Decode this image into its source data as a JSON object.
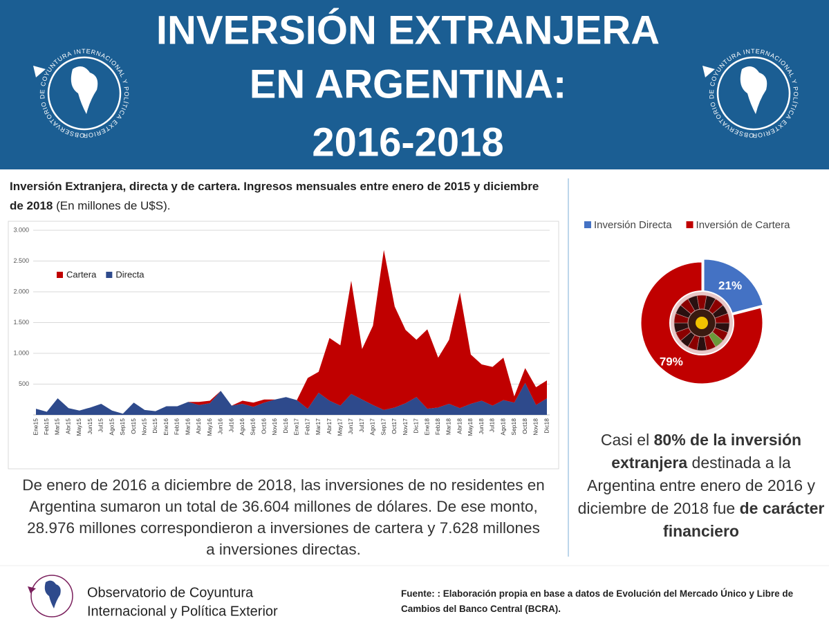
{
  "header": {
    "title_lines": [
      "INVERSIÓN EXTRANJERA",
      "EN ARGENTINA:",
      "2016-2018"
    ],
    "logo_ring": "OBSERVATORIO DE COYUNTURA INTERNACIONAL Y POLÍTICA EXTERIOR"
  },
  "chart_data": [
    {
      "type": "area",
      "title": "Inversión Extranjera, directa y de cartera. Ingresos mensuales entre enero de 2015 y diciembre de 2018",
      "subtitle": "(En millones de U$S).",
      "stacked": true,
      "categories": [
        "Ene15",
        "Feb15",
        "Mar15",
        "Abr15",
        "May15",
        "Jun15",
        "Jul15",
        "Ago15",
        "Sep15",
        "Oct15",
        "Nov15",
        "Dic15",
        "Ene16",
        "Feb16",
        "Mar16",
        "Abr16",
        "May16",
        "Jun16",
        "Jul16",
        "Ago16",
        "Sep16",
        "Oct16",
        "Nov16",
        "Dic16",
        "Ene17",
        "Feb17",
        "Mar17",
        "Abr17",
        "May17",
        "Jun17",
        "Jul17",
        "Ago17",
        "Sep17",
        "Oct17",
        "Nov17",
        "Dic17",
        "Ene18",
        "Feb18",
        "Mar18",
        "Abr18",
        "May18",
        "Jun18",
        "Jul18",
        "Ago18",
        "Sep18",
        "Oct18",
        "Nov18",
        "Dic18"
      ],
      "series": [
        {
          "name": "Cartera",
          "color": "#c00000",
          "values": [
            0,
            0,
            0,
            0,
            0,
            0,
            0,
            0,
            0,
            0,
            0,
            0,
            0,
            0,
            0,
            50,
            40,
            0,
            0,
            50,
            70,
            50,
            0,
            0,
            0,
            500,
            340,
            1020,
            980,
            1840,
            820,
            1290,
            2600,
            1640,
            1190,
            930,
            1290,
            810,
            1040,
            1880,
            800,
            590,
            630,
            690,
            100,
            240,
            290,
            290
          ]
        },
        {
          "name": "Directa",
          "color": "#2e4a8c",
          "values": [
            100,
            50,
            270,
            110,
            70,
            120,
            180,
            70,
            20,
            200,
            80,
            60,
            140,
            140,
            210,
            160,
            190,
            390,
            150,
            180,
            130,
            200,
            250,
            290,
            240,
            100,
            360,
            230,
            150,
            340,
            250,
            160,
            80,
            120,
            190,
            290,
            100,
            120,
            180,
            110,
            180,
            230,
            150,
            240,
            200,
            520,
            160,
            270
          ]
        }
      ],
      "ylim": [
        0,
        3000
      ],
      "yticks": [
        500,
        {
          "value": 1000,
          "label": "1.000"
        },
        {
          "value": 1500,
          "label": "1.500"
        },
        {
          "value": 2000,
          "label": "2.000"
        },
        {
          "value": 2500,
          "label": "2.500"
        },
        {
          "value": 3000,
          "label": "3.000"
        }
      ],
      "grid": true,
      "legend": "top-left"
    },
    {
      "type": "pie",
      "categories": [
        "Inversión Directa",
        "Inversión de Cartera"
      ],
      "values": [
        21,
        79
      ],
      "value_labels": [
        "21%",
        "79%"
      ],
      "colors": [
        "#4472c4",
        "#c00000"
      ],
      "legend": "top"
    }
  ],
  "summary": "De enero de 2016 a diciembre de 2018, las inversiones de no residentes en Argentina sumaron un total de 36.604 millones de dólares. De ese monto, 28.976 millones correspondieron a inversiones de cartera y 7.628 millones a inversiones directas.",
  "highlight": [
    "Casi el ",
    "80% de la inversión extranjera",
    " destinada a la Argentina entre enero de 2016 y diciembre de 2018 fue ",
    "de carácter financiero"
  ],
  "footer": {
    "org_lines": [
      "Observatorio de Coyuntura",
      "Internacional y Política Exterior"
    ],
    "source": "Fuente: : Elaboración propia en base a datos de Evolución del Mercado Único y Libre de Cambios del Banco Central (BCRA)."
  }
}
